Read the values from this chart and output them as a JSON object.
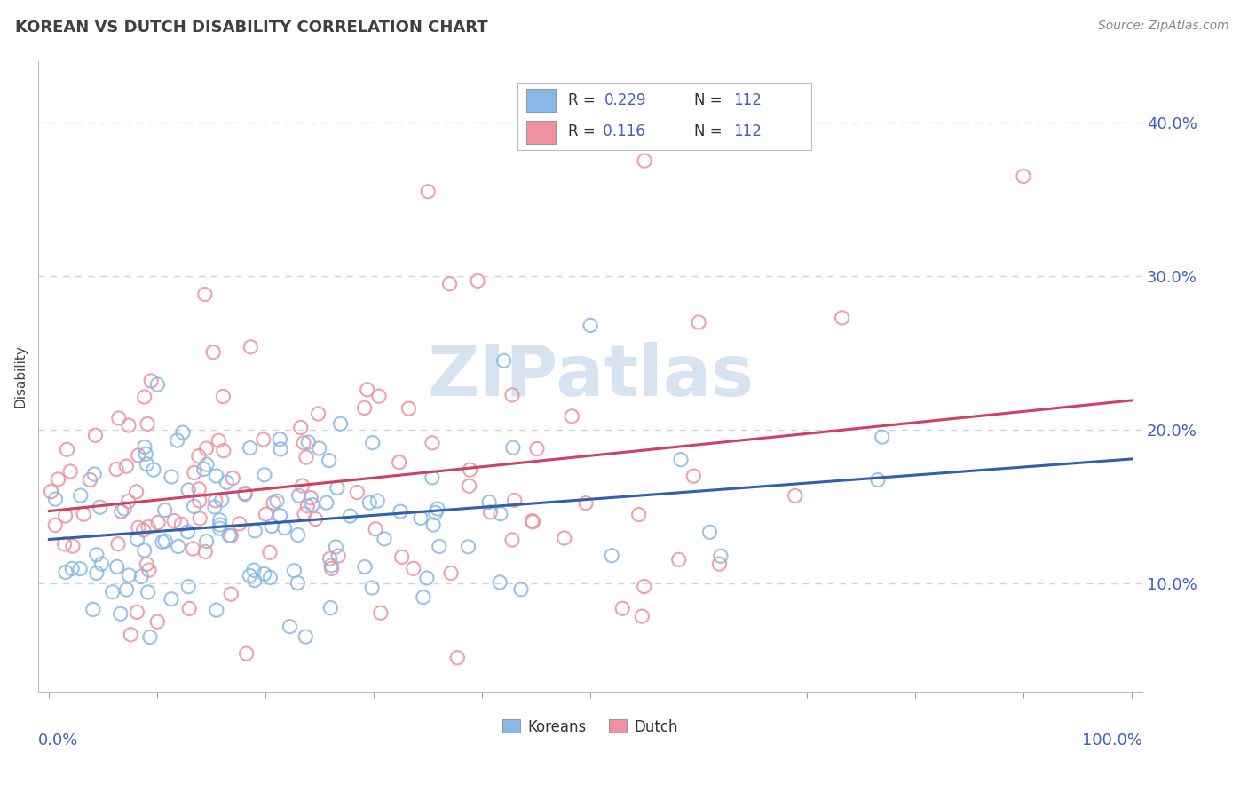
{
  "title": "KOREAN VS DUTCH DISABILITY CORRELATION CHART",
  "source": "Source: ZipAtlas.com",
  "ylabel": "Disability",
  "legend_entries": [
    {
      "label": "Koreans",
      "R": "0.229",
      "N": "112",
      "color": "#88b8e8",
      "line_color": "#3060b0"
    },
    {
      "label": "Dutch",
      "R": "0.116",
      "N": "112",
      "color": "#f090a0",
      "line_color": "#d04060"
    }
  ],
  "background_color": "#ffffff",
  "grid_color": "#c8d4e8",
  "watermark": "ZIPatlas",
  "watermark_color": "#c8d8ec",
  "title_color": "#404040",
  "source_color": "#888888",
  "ylabel_color": "#404040",
  "tick_label_color": "#4060c0",
  "N": 112,
  "seed": 42,
  "ylim_low": 0.03,
  "ylim_high": 0.44,
  "y_ticks": [
    0.1,
    0.2,
    0.3,
    0.4
  ],
  "scatter_size": 120,
  "scatter_linewidth": 1.5
}
